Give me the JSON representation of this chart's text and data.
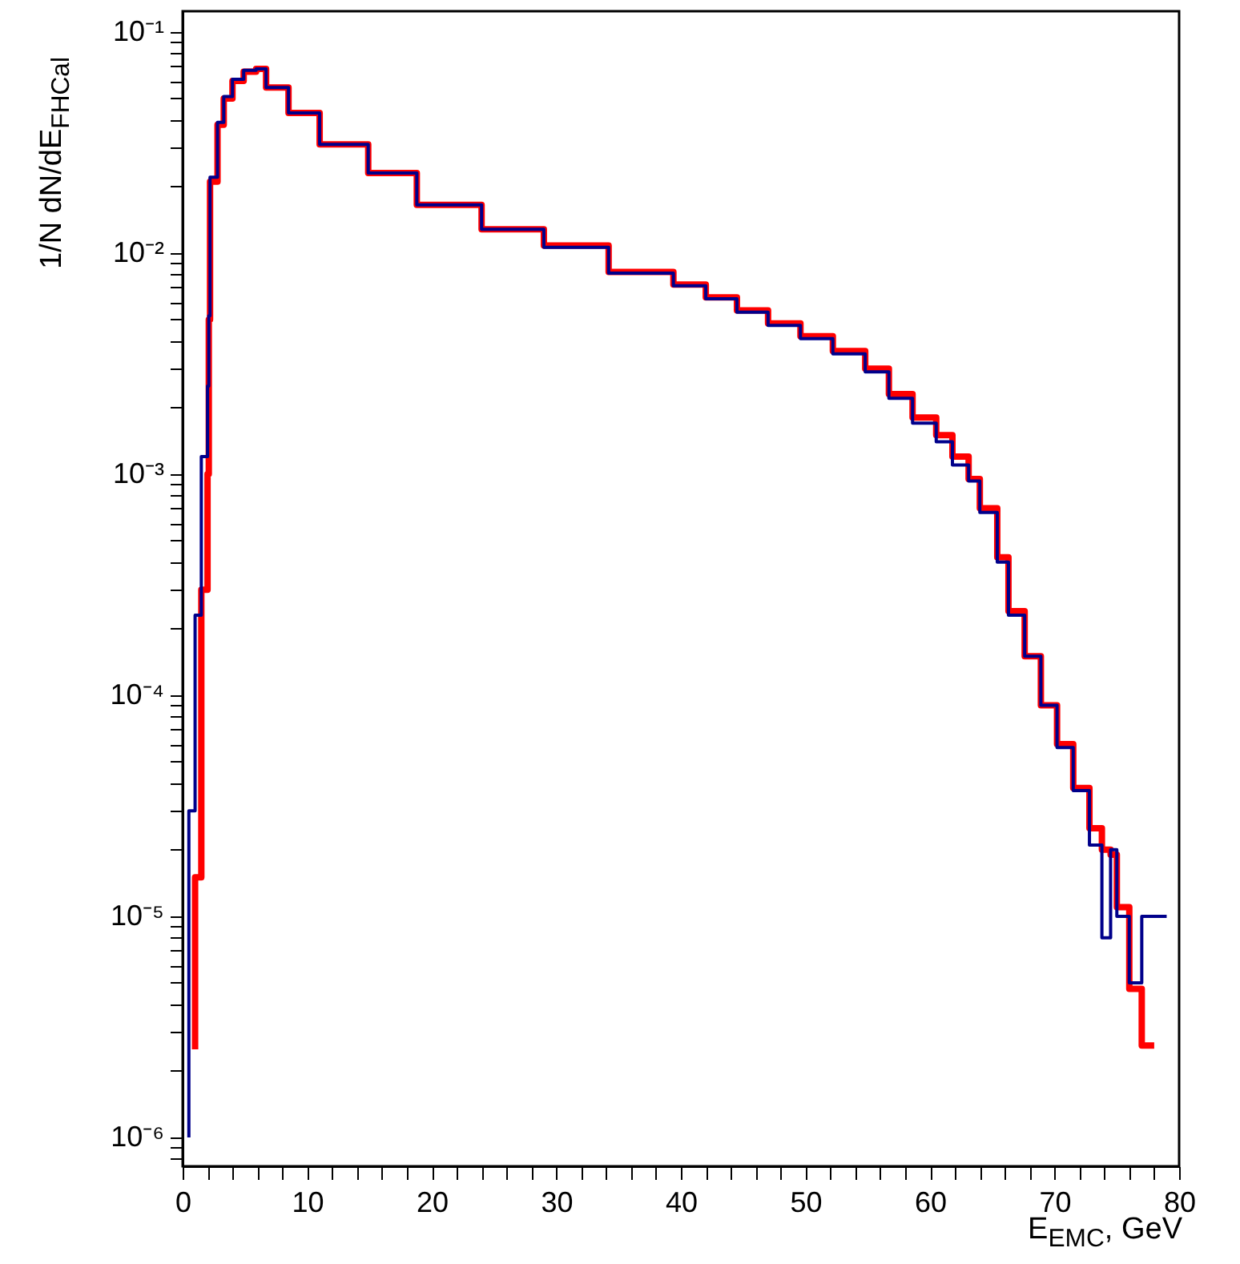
{
  "chart_data": {
    "type": "step",
    "xlabel": "E$_{EMC}$, GeV",
    "ylabel": "1/N dN/dE$_{FHCal}$",
    "x": [
      0.5,
      1,
      1.5,
      2,
      2.1,
      2.2,
      2.8,
      3.3,
      4,
      4.9,
      5.9,
      6.7,
      8.5,
      11,
      14.9,
      18.8,
      24,
      29,
      34.2,
      39.4,
      42,
      44.5,
      47,
      49.6,
      52.2,
      54.8,
      56.7,
      58.6,
      60.5,
      61.8,
      63.1,
      64,
      65.4,
      66.3,
      67.6,
      68.9,
      70.2,
      71.5,
      72.8,
      73.8,
      74.5,
      75,
      76,
      77,
      78,
      79
    ],
    "series": [
      {
        "color": "#ff0000",
        "values": [
          null,
          2.5e-06,
          1.5e-05,
          0.0003,
          0.001,
          0.005,
          0.021,
          0.038,
          0.05,
          0.06,
          0.066,
          0.068,
          0.056,
          0.043,
          0.031,
          0.023,
          0.0165,
          0.0128,
          0.0108,
          0.0082,
          0.0072,
          0.0063,
          0.0055,
          0.0048,
          0.0042,
          0.0036,
          0.003,
          0.0023,
          0.0018,
          0.0015,
          0.0012,
          0.00095,
          0.0007,
          0.00042,
          0.00024,
          0.00015,
          9e-05,
          6e-05,
          3.8e-05,
          2.5e-05,
          2e-05,
          1.9e-05,
          1.1e-05,
          4.7e-06,
          2.6e-06,
          null
        ]
      },
      {
        "color": "#00008b",
        "values": [
          1e-06,
          3e-05,
          0.00023,
          0.0012,
          0.0025,
          0.0052,
          0.022,
          0.039,
          0.051,
          0.061,
          0.067,
          0.068,
          0.056,
          0.043,
          0.031,
          0.023,
          0.0165,
          0.0128,
          0.0106,
          0.0081,
          0.0071,
          0.0062,
          0.0054,
          0.0047,
          0.0041,
          0.0035,
          0.0029,
          0.0022,
          0.0017,
          0.0014,
          0.0011,
          0.00093,
          0.00067,
          0.0004,
          0.00023,
          0.00015,
          9e-05,
          5.8e-05,
          3.7e-05,
          2.1e-05,
          8e-06,
          2e-05,
          1e-05,
          5e-06,
          1e-05,
          1e-05
        ]
      }
    ],
    "log": true,
    "xlim": [
      0,
      80
    ],
    "ylim": [
      7.4e-07,
      0.124
    ],
    "xticks": [
      0,
      {
        "value": 2,
        "label": null
      },
      {
        "value": 4,
        "label": null
      },
      {
        "value": 6,
        "label": null
      },
      {
        "value": 8,
        "label": null
      },
      10,
      {
        "value": 12,
        "label": null
      },
      {
        "value": 14,
        "label": null
      },
      {
        "value": 16,
        "label": null
      },
      {
        "value": 18,
        "label": null
      },
      20,
      {
        "value": 22,
        "label": null
      },
      {
        "value": 24,
        "label": null
      },
      {
        "value": 26,
        "label": null
      },
      {
        "value": 28,
        "label": null
      },
      30,
      {
        "value": 32,
        "label": null
      },
      {
        "value": 34,
        "label": null
      },
      {
        "value": 36,
        "label": null
      },
      {
        "value": 38,
        "label": null
      },
      40,
      {
        "value": 42,
        "label": null
      },
      {
        "value": 44,
        "label": null
      },
      {
        "value": 46,
        "label": null
      },
      {
        "value": 48,
        "label": null
      },
      50,
      {
        "value": 52,
        "label": null
      },
      {
        "value": 54,
        "label": null
      },
      {
        "value": 56,
        "label": null
      },
      {
        "value": 58,
        "label": null
      },
      60,
      {
        "value": 62,
        "label": null
      },
      {
        "value": 64,
        "label": null
      },
      {
        "value": 66,
        "label": null
      },
      {
        "value": 68,
        "label": null
      },
      70,
      {
        "value": 72,
        "label": null
      },
      {
        "value": 74,
        "label": null
      },
      {
        "value": 76,
        "label": null
      },
      {
        "value": 78,
        "label": null
      },
      80
    ],
    "yticks": [
      {
        "value": 8e-07,
        "label": null
      },
      {
        "value": 9e-07,
        "label": null
      },
      {
        "value": 1e-06,
        "label": "10⁻⁶"
      },
      {
        "value": 2e-06,
        "label": null
      },
      {
        "value": 3e-06,
        "label": null
      },
      {
        "value": 4e-06,
        "label": null
      },
      {
        "value": 5e-06,
        "label": null
      },
      {
        "value": 6e-06,
        "label": null
      },
      {
        "value": 7e-06,
        "label": null
      },
      {
        "value": 8e-06,
        "label": null
      },
      {
        "value": 9e-06,
        "label": null
      },
      {
        "value": 1e-05,
        "label": "10⁻⁵"
      },
      {
        "value": 2e-05,
        "label": null
      },
      {
        "value": 3e-05,
        "label": null
      },
      {
        "value": 4e-05,
        "label": null
      },
      {
        "value": 5e-05,
        "label": null
      },
      {
        "value": 6e-05,
        "label": null
      },
      {
        "value": 7e-05,
        "label": null
      },
      {
        "value": 8e-05,
        "label": null
      },
      {
        "value": 9e-05,
        "label": null
      },
      {
        "value": 0.0001,
        "label": "10⁻⁴"
      },
      {
        "value": 0.0002,
        "label": null
      },
      {
        "value": 0.0003,
        "label": null
      },
      {
        "value": 0.0004,
        "label": null
      },
      {
        "value": 0.0005,
        "label": null
      },
      {
        "value": 0.0006,
        "label": null
      },
      {
        "value": 0.0007,
        "label": null
      },
      {
        "value": 0.0008,
        "label": null
      },
      {
        "value": 0.0009,
        "label": null
      },
      {
        "value": 0.001,
        "label": "10⁻³"
      },
      {
        "value": 0.002,
        "label": null
      },
      {
        "value": 0.003,
        "label": null
      },
      {
        "value": 0.004,
        "label": null
      },
      {
        "value": 0.005,
        "label": null
      },
      {
        "value": 0.006,
        "label": null
      },
      {
        "value": 0.007,
        "label": null
      },
      {
        "value": 0.008,
        "label": null
      },
      {
        "value": 0.009,
        "label": null
      },
      {
        "value": 0.01,
        "label": "10⁻²"
      },
      {
        "value": 0.02,
        "label": null
      },
      {
        "value": 0.03,
        "label": null
      },
      {
        "value": 0.04,
        "label": null
      },
      {
        "value": 0.05,
        "label": null
      },
      {
        "value": 0.06,
        "label": null
      },
      {
        "value": 0.07,
        "label": null
      },
      {
        "value": 0.08,
        "label": null
      },
      {
        "value": 0.09,
        "label": null
      },
      {
        "value": 0.1,
        "label": "10⁻¹"
      }
    ],
    "grid": false
  }
}
